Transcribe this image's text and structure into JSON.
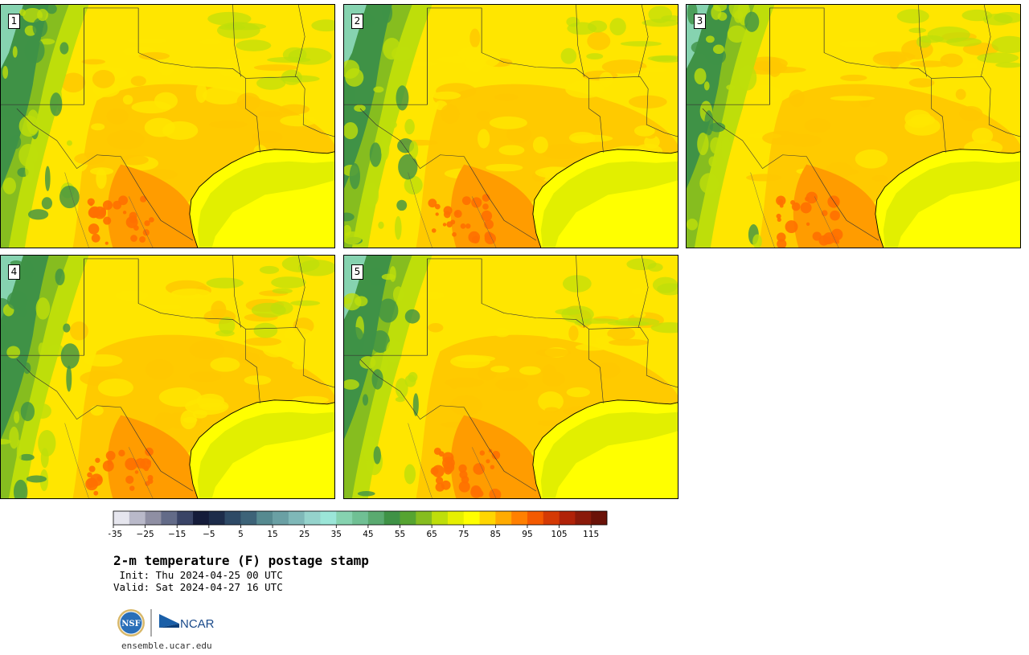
{
  "product": {
    "title": "2-m temperature (F) postage stamp",
    "init_line": " Init: Thu 2024-04-25 00 UTC",
    "valid_line": "Valid: Sat 2024-04-27 16 UTC",
    "site": "ensemble.ucar.edu"
  },
  "members": [
    "1",
    "2",
    "3",
    "4",
    "5"
  ],
  "colorbar": {
    "ticks": [
      "−35",
      "−25",
      "−15",
      "−5",
      "5",
      "15",
      "25",
      "35",
      "45",
      "55",
      "65",
      "75",
      "85",
      "95",
      "105",
      "115"
    ],
    "tick_values": [
      -35,
      -25,
      -15,
      -5,
      5,
      15,
      25,
      35,
      45,
      55,
      65,
      75,
      85,
      95,
      105,
      115
    ],
    "min": -35,
    "max": 120,
    "step": 5,
    "colors": [
      "#e6e6ee",
      "#b9b9c9",
      "#8f8fa3",
      "#636b88",
      "#3a4466",
      "#151c3a",
      "#1d2c4a",
      "#2e4a66",
      "#3d6378",
      "#568a90",
      "#6aa0a4",
      "#7fb8b8",
      "#95d3cc",
      "#9be6d8",
      "#86d3b0",
      "#70c094",
      "#5aaa70",
      "#3f9246",
      "#56a431",
      "#86bd1f",
      "#bede0a",
      "#e6ef00",
      "#ffff00",
      "#ffd600",
      "#ffab00",
      "#ff8000",
      "#f45a00",
      "#d43a05",
      "#b02208",
      "#8a1a0a",
      "#6a1208"
    ]
  },
  "map_colors": {
    "ocean": "#ffff00",
    "gulf_shelf": "#e2ef00",
    "plains": "#ffe600",
    "warm": "#ffc800",
    "hot": "#ff9c00",
    "hotter": "#ff7000",
    "cool": "#bede0a",
    "cooler": "#86bd1f",
    "cold": "#3f9246",
    "coldest": "#86d3b0"
  },
  "logos": {
    "nsf": "NSF",
    "ncar": "NCAR"
  }
}
